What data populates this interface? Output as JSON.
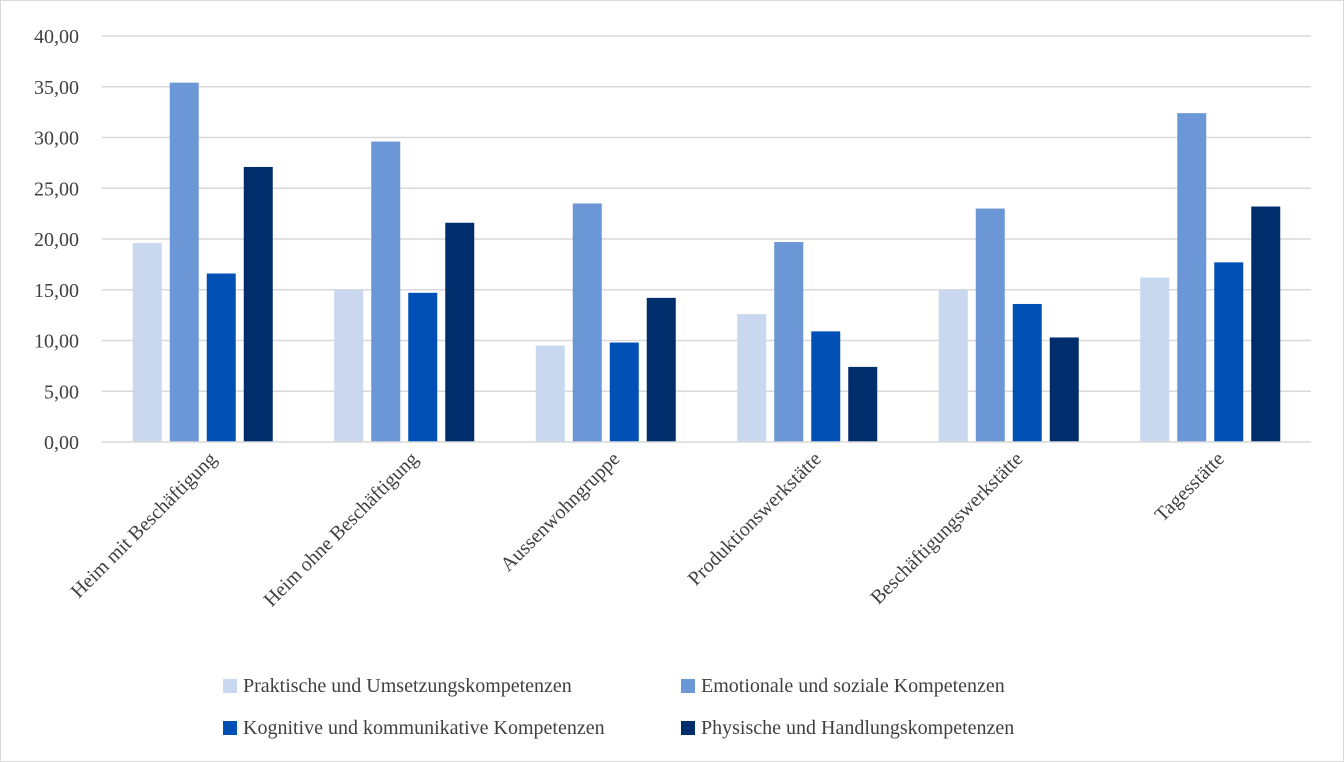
{
  "chart_data": {
    "type": "bar",
    "title": "",
    "xlabel": "",
    "ylabel": "",
    "ylim": [
      0,
      40
    ],
    "y_ticks": [
      "0,00",
      "5,00",
      "10,00",
      "15,00",
      "20,00",
      "25,00",
      "30,00",
      "35,00",
      "40,00"
    ],
    "grid": true,
    "legend_position": "bottom",
    "categories": [
      "Heim mit Beschäftigung",
      "Heim ohne Beschäftigung",
      "Aussenwohngruppe",
      "Produktionswerkstätte",
      "Beschäftigungswerkstätte",
      "Tagesstätte"
    ],
    "series": [
      {
        "name": "Praktische und Umsetzungskompetenzen",
        "color": "#c9d8ef",
        "values": [
          19.6,
          15.0,
          9.5,
          12.6,
          15.0,
          16.2
        ]
      },
      {
        "name": "Emotionale und soziale Kompetenzen",
        "color": "#6b97d6",
        "values": [
          35.4,
          29.6,
          23.5,
          19.7,
          23.0,
          32.4
        ]
      },
      {
        "name": "Kognitive und kommunikative Kompetenzen",
        "color": "#0050b5",
        "values": [
          16.6,
          14.7,
          9.8,
          10.9,
          13.6,
          17.7
        ]
      },
      {
        "name": "Physische und Handlungskompetenzen",
        "color": "#002d6b",
        "values": [
          27.1,
          21.6,
          14.2,
          7.4,
          10.3,
          23.2
        ]
      }
    ]
  }
}
